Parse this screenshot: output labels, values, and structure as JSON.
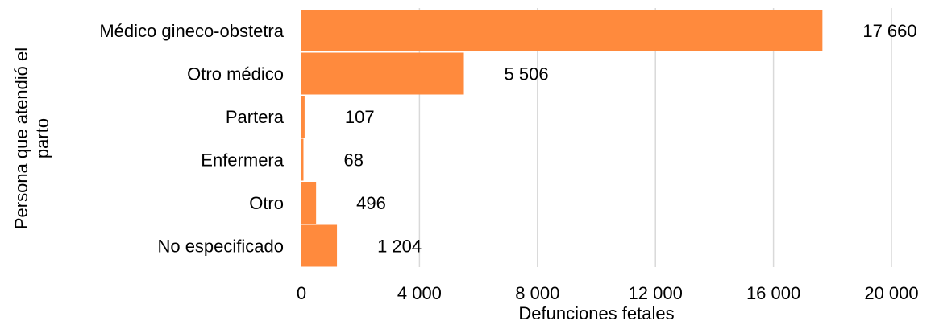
{
  "chart_data": {
    "type": "bar",
    "orientation": "horizontal",
    "categories": [
      "Médico gineco-obstetra",
      "Otro médico",
      "Partera",
      "Enfermera",
      "Otro",
      "No especificado"
    ],
    "values": [
      17660,
      5506,
      107,
      68,
      496,
      1204
    ],
    "value_labels": [
      "17 660",
      "5 506",
      "107",
      "68",
      "496",
      "1 204"
    ],
    "xlabel": "Defunciones fetales",
    "ylabel": "Persona que atendió el parto",
    "xlim": [
      0,
      20000
    ],
    "xticks": [
      0,
      4000,
      8000,
      12000,
      16000,
      20000
    ],
    "xtick_labels": [
      "0",
      "4 000",
      "8 000",
      "12 000",
      "16 000",
      "20 000"
    ],
    "grid": "vertical",
    "legend": "none",
    "bar_color": "#FF8A3D"
  }
}
